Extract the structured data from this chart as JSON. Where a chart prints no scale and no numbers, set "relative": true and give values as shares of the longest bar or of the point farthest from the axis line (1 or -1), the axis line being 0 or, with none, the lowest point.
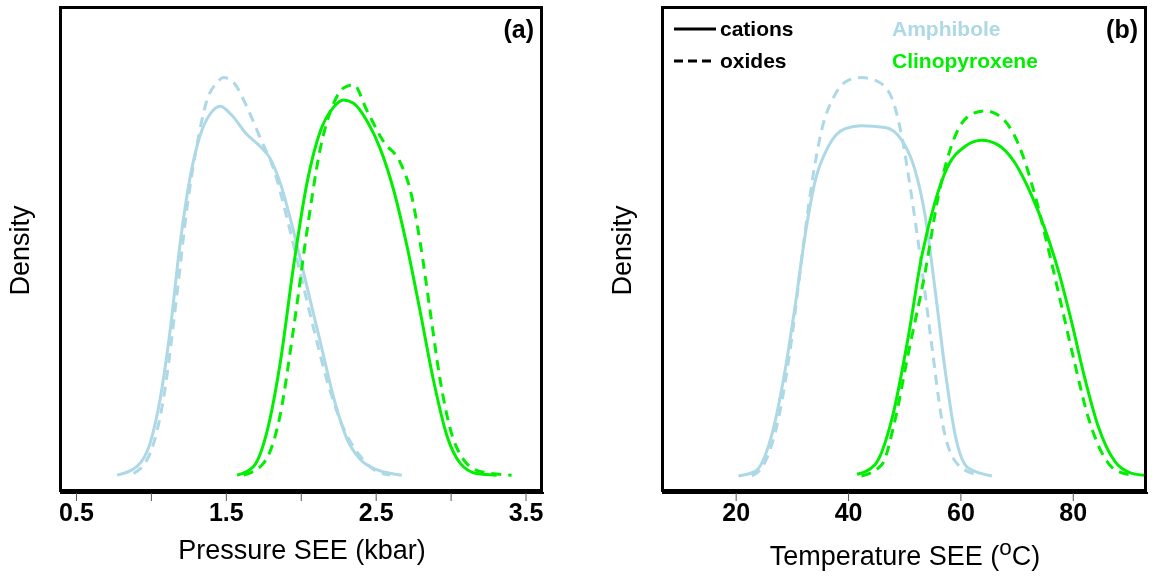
{
  "chart_data": [
    {
      "type": "line",
      "relative": true,
      "xlabel": "Pressure SEE (kbar)",
      "ylabel": "Density",
      "xlim": [
        0.39,
        3.62
      ],
      "xticks": [
        0.5,
        {
          "value": 1,
          "label": null
        },
        1.5,
        {
          "value": 2,
          "label": null
        },
        2.5,
        {
          "value": 3,
          "label": null
        },
        3.5
      ],
      "tick_labels": "x",
      "marker": "none",
      "annotations": [
        "(a)"
      ],
      "series": [
        {
          "color": "#add8e6",
          "line_style": "solid",
          "x": [
            0.771,
            0.904,
            0.993,
            1.06,
            1.127,
            1.193,
            1.26,
            1.327,
            1.393,
            1.46,
            1.527,
            1.638,
            1.727,
            1.793,
            1.86,
            1.949,
            2.038,
            2.127,
            2.216,
            2.304,
            2.393,
            2.504,
            2.671
          ],
          "values": [
            0.043,
            0.064,
            0.122,
            0.23,
            0.397,
            0.605,
            0.763,
            0.863,
            0.913,
            0.931,
            0.913,
            0.863,
            0.834,
            0.805,
            0.746,
            0.63,
            0.497,
            0.364,
            0.23,
            0.131,
            0.081,
            0.056,
            0.043
          ]
        },
        {
          "color": "#add8e6",
          "line_style": "dashed",
          "x": [
            0.882,
            0.993,
            1.082,
            1.171,
            1.238,
            1.304,
            1.371,
            1.438,
            1.482,
            1.549,
            1.638,
            1.727,
            1.816,
            1.904,
            1.993,
            2.082,
            2.171,
            2.282,
            2.393,
            2.504,
            2.593
          ],
          "values": [
            0.047,
            0.097,
            0.23,
            0.48,
            0.688,
            0.838,
            0.946,
            0.988,
            1.0,
            0.988,
            0.929,
            0.854,
            0.78,
            0.663,
            0.53,
            0.397,
            0.272,
            0.156,
            0.089,
            0.052,
            0.043
          ]
        },
        {
          "color": "#00ee00",
          "line_style": "solid",
          "x": [
            1.571,
            1.682,
            1.771,
            1.86,
            1.949,
            2.038,
            2.127,
            2.216,
            2.282,
            2.349,
            2.438,
            2.527,
            2.616,
            2.704,
            2.793,
            2.882,
            2.971,
            3.06,
            3.171,
            3.304
          ],
          "values": [
            0.043,
            0.064,
            0.147,
            0.314,
            0.547,
            0.746,
            0.871,
            0.929,
            0.946,
            0.938,
            0.896,
            0.829,
            0.73,
            0.597,
            0.438,
            0.272,
            0.139,
            0.072,
            0.047,
            0.043
          ]
        },
        {
          "color": "#00ee00",
          "line_style": "dashed",
          "x": [
            1.616,
            1.749,
            1.86,
            1.949,
            2.038,
            2.127,
            2.216,
            2.282,
            2.349,
            2.438,
            2.549,
            2.66,
            2.727,
            2.793,
            2.86,
            2.927,
            2.993,
            3.082,
            3.193,
            3.404
          ],
          "values": [
            0.043,
            0.072,
            0.189,
            0.397,
            0.63,
            0.829,
            0.938,
            0.975,
            0.983,
            0.921,
            0.846,
            0.796,
            0.73,
            0.605,
            0.438,
            0.272,
            0.156,
            0.081,
            0.052,
            0.043
          ]
        }
      ]
    },
    {
      "type": "line",
      "relative": true,
      "xlabel": "Temperature SEE ($^{o}$C)",
      "ylabel": "Density",
      "xlim": [
        6.8,
        93.3
      ],
      "xticks": [
        20,
        40,
        60,
        80
      ],
      "tick_labels": "x",
      "marker": "none",
      "annotations": [
        "(b)",
        "cations",
        "oxides",
        "Amphibole",
        "Clinopyroxene"
      ],
      "series": [
        {
          "color": "#add8e6",
          "line_style": "solid",
          "x": [
            20.4,
            23.4,
            26.3,
            28.7,
            30.5,
            32.3,
            34.0,
            36.4,
            39.4,
            42.3,
            46.5,
            49.5,
            51.8,
            53.6,
            55.4,
            57.2,
            59.0,
            61.3,
            65.5
          ],
          "values": [
            0.041,
            0.052,
            0.138,
            0.295,
            0.451,
            0.623,
            0.748,
            0.834,
            0.877,
            0.884,
            0.88,
            0.849,
            0.779,
            0.67,
            0.49,
            0.295,
            0.138,
            0.06,
            0.041
          ]
        },
        {
          "color": "#add8e6",
          "line_style": "dashed",
          "x": [
            22.8,
            25.2,
            27.5,
            29.9,
            31.7,
            33.5,
            35.2,
            37.6,
            40.0,
            42.3,
            45.3,
            47.7,
            49.5,
            51.2,
            53.0,
            54.8,
            56.6,
            59.0,
            62.5
          ],
          "values": [
            0.041,
            0.076,
            0.177,
            0.373,
            0.568,
            0.748,
            0.873,
            0.959,
            0.994,
            1.0,
            0.99,
            0.951,
            0.857,
            0.716,
            0.545,
            0.357,
            0.177,
            0.076,
            0.045
          ]
        },
        {
          "color": "#00ee00",
          "line_style": "solid",
          "x": [
            41.5,
            44.7,
            47.7,
            50.6,
            53.0,
            55.4,
            57.7,
            60.7,
            63.7,
            66.6,
            69.6,
            72.6,
            74.9,
            77.3,
            79.7,
            82.0,
            84.4,
            87.4,
            90.3,
            92.7
          ],
          "values": [
            0.045,
            0.068,
            0.177,
            0.373,
            0.568,
            0.701,
            0.787,
            0.834,
            0.849,
            0.838,
            0.795,
            0.716,
            0.638,
            0.537,
            0.412,
            0.279,
            0.162,
            0.076,
            0.048,
            0.043
          ]
        },
        {
          "color": "#00ee00",
          "line_style": "dashed",
          "x": [
            42.3,
            45.9,
            48.3,
            50.6,
            53.6,
            56.0,
            58.9,
            61.9,
            64.3,
            67.2,
            70.2,
            73.2,
            75.5,
            77.9,
            80.3,
            82.6,
            85.0,
            87.9,
            90.9
          ],
          "values": [
            0.041,
            0.068,
            0.177,
            0.334,
            0.529,
            0.716,
            0.857,
            0.912,
            0.92,
            0.904,
            0.841,
            0.716,
            0.591,
            0.451,
            0.31,
            0.185,
            0.099,
            0.052,
            0.043
          ]
        }
      ]
    }
  ]
}
